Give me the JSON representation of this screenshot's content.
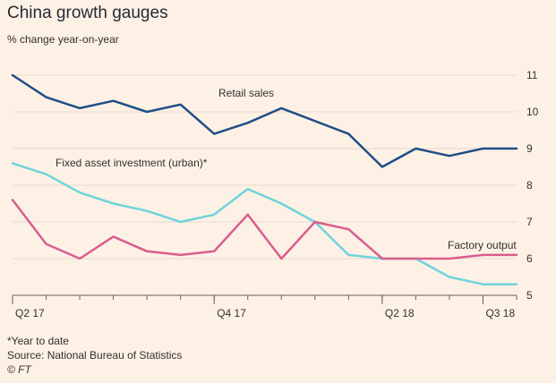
{
  "title": "China growth gauges",
  "subtitle": "% change year-on-year",
  "footer": {
    "note": "*Year to date",
    "source": "Source: National Bureau of Statistics",
    "credit": "© FT"
  },
  "chart_data": {
    "type": "line",
    "x": [
      "Apr 2017",
      "May 2017",
      "Jun 2017",
      "Jul 2017",
      "Aug 2017",
      "Sep 2017",
      "Oct 2017",
      "Nov 2017",
      "Dec 2017",
      "Jan-Feb 2018",
      "Mar 2018",
      "Apr 2018",
      "May 2018",
      "Jun 2018",
      "Jul 2018",
      "Aug 2018"
    ],
    "x_ticks": [
      {
        "label": "Q2 17",
        "at": "Apr 2017"
      },
      {
        "label": "Q4 17",
        "at": "Oct 2017"
      },
      {
        "label": "Q2 18",
        "at": "Apr 2018"
      },
      {
        "label": "Q3 18",
        "at": "Jul 2018"
      }
    ],
    "ylim": [
      5,
      11
    ],
    "yticks": [
      5,
      6,
      7,
      8,
      9,
      10,
      11
    ],
    "y_axis_side": "right",
    "grid": true,
    "xlabel": "",
    "ylabel": "",
    "series": [
      {
        "name": "Retail sales",
        "color": "#1f4e87",
        "x": [
          "Apr 2017",
          "May 2017",
          "Jun 2017",
          "Jul 2017",
          "Aug 2017",
          "Sep 2017",
          "Oct 2017",
          "Nov 2017",
          "Dec 2017",
          "Mar 2018",
          "Apr 2018",
          "May 2018",
          "Jun 2018",
          "Jul 2018",
          "Aug 2018"
        ],
        "values": [
          11.0,
          10.4,
          10.1,
          10.3,
          10.0,
          10.2,
          9.4,
          9.7,
          10.1,
          9.4,
          8.5,
          9.0,
          8.8,
          9.0,
          9.0
        ]
      },
      {
        "name": "Fixed asset investment (urban)*",
        "color": "#6fd3dd",
        "x": [
          "Apr 2017",
          "May 2017",
          "Jun 2017",
          "Jul 2017",
          "Aug 2017",
          "Sep 2017",
          "Oct 2017",
          "Nov 2017",
          "Dec 2017",
          "Jan-Feb 2018",
          "Mar 2018",
          "Apr 2018",
          "May 2018",
          "Jun 2018",
          "Jul 2018",
          "Aug 2018"
        ],
        "values": [
          8.6,
          8.3,
          7.8,
          7.5,
          7.3,
          7.0,
          7.2,
          7.9,
          7.5,
          7.0,
          6.1,
          6.0,
          6.0,
          5.5,
          5.3,
          5.3
        ]
      },
      {
        "name": "Factory output",
        "color": "#d95d8e",
        "x": [
          "Apr 2017",
          "May 2017",
          "Jun 2017",
          "Jul 2017",
          "Aug 2017",
          "Sep 2017",
          "Oct 2017",
          "Nov 2017",
          "Dec 2017",
          "Jan-Feb 2018",
          "Mar 2018",
          "Apr 2018",
          "May 2018",
          "Jun 2018",
          "Jul 2018",
          "Aug 2018"
        ],
        "values": [
          7.6,
          6.4,
          6.0,
          6.6,
          6.2,
          6.1,
          6.2,
          7.2,
          6.0,
          7.0,
          6.8,
          6.0,
          6.0,
          6.0,
          6.1,
          6.1
        ]
      }
    ]
  }
}
